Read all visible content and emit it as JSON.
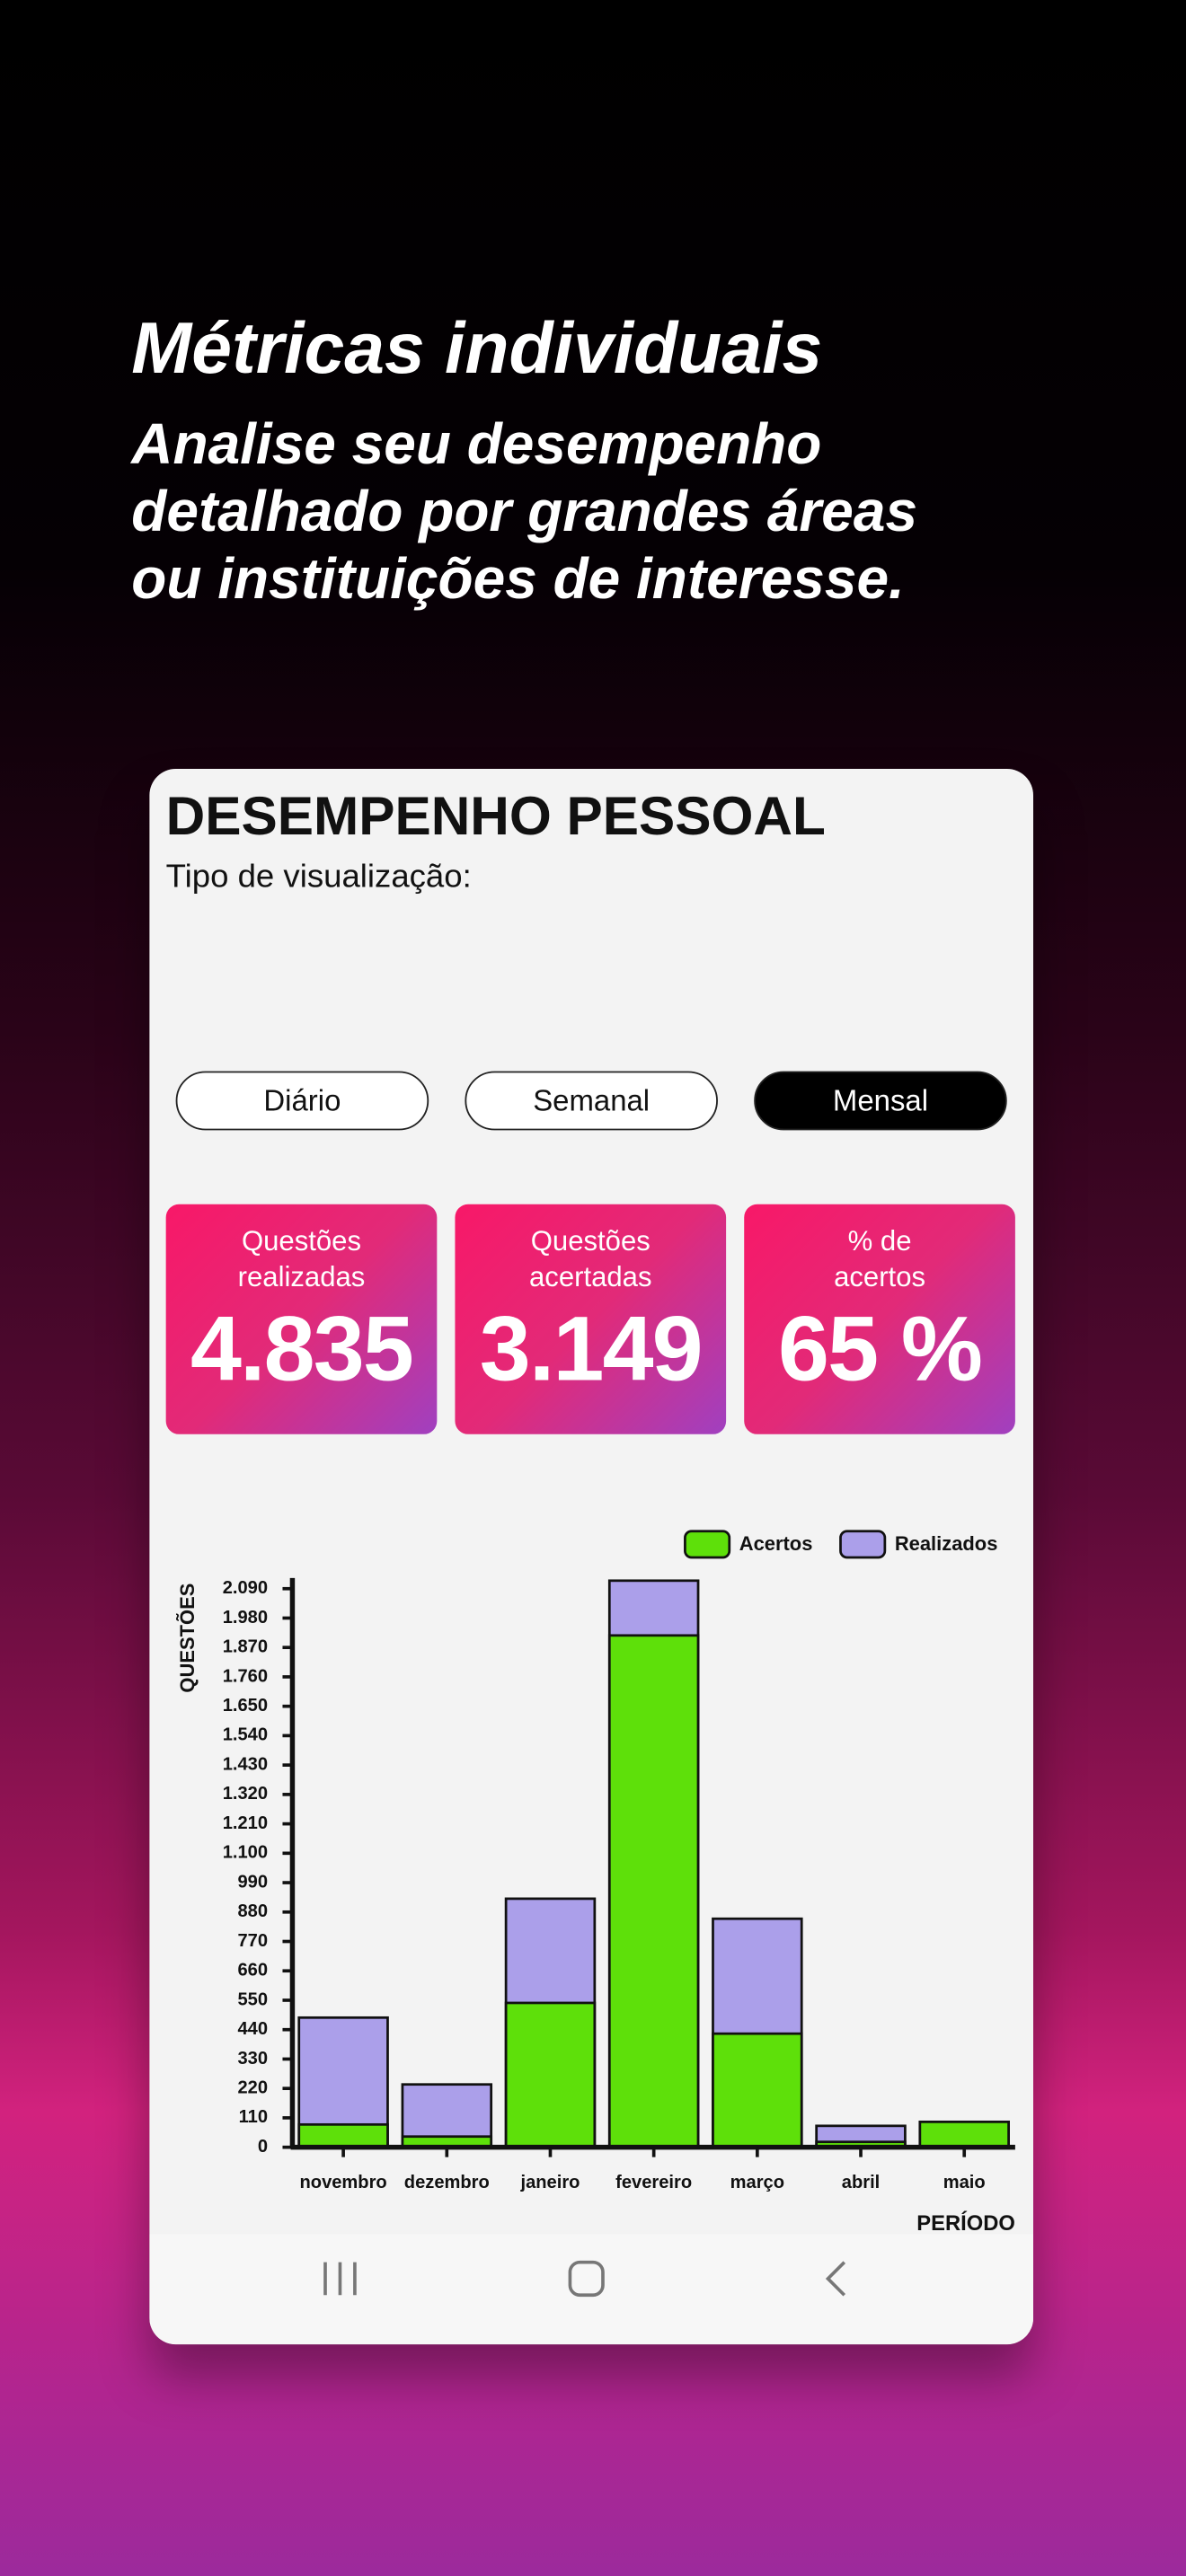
{
  "header": {
    "title": "Métricas individuais",
    "subtitle": "Analise seu desempenho\ndetalhado por grandes áreas\nou instituições de interesse."
  },
  "card": {
    "title": "DESEMPENHO PESSOAL",
    "view_label": "Tipo de visualização:",
    "views": [
      "Diário",
      "Semanal",
      "Mensal"
    ],
    "stats": [
      {
        "label": "Questões\nrealizadas",
        "value": "4.835"
      },
      {
        "label": "Questões\nacertadas",
        "value": "3.149"
      },
      {
        "label": "% de\nacertos",
        "value": "65 %"
      }
    ]
  },
  "chart_data": {
    "type": "bar",
    "y_label": "QUESTÕES",
    "x_label": "PERÍODO",
    "categories": [
      "novembro",
      "dezembro",
      "janeiro",
      "fevereiro",
      "março",
      "abril",
      "maio"
    ],
    "series": [
      {
        "name": "Acertos",
        "color": "#5ee00a",
        "values": [
          85,
          40,
          540,
          1915,
          425,
          20,
          95
        ]
      },
      {
        "name": "Realizados",
        "color": "#ab9fea",
        "values": [
          485,
          235,
          930,
          2120,
          855,
          80,
          95
        ]
      }
    ],
    "ylim": [
      0,
      2130
    ],
    "yticks": [
      0,
      110,
      220,
      330,
      440,
      550,
      660,
      770,
      880,
      990,
      {
        "value": 1100,
        "label": "1.100"
      },
      {
        "value": 1210,
        "label": "1.210"
      },
      {
        "value": 1320,
        "label": "1.320"
      },
      {
        "value": 1430,
        "label": "1.430"
      },
      {
        "value": 1540,
        "label": "1.540"
      },
      {
        "value": 1650,
        "label": "1.650"
      },
      {
        "value": 1760,
        "label": "1.760"
      },
      {
        "value": 1870,
        "label": "1.870"
      },
      {
        "value": 1980,
        "label": "1.980"
      },
      {
        "value": 2090,
        "label": "2.090"
      }
    ],
    "grid": false,
    "legend": "top-right"
  }
}
